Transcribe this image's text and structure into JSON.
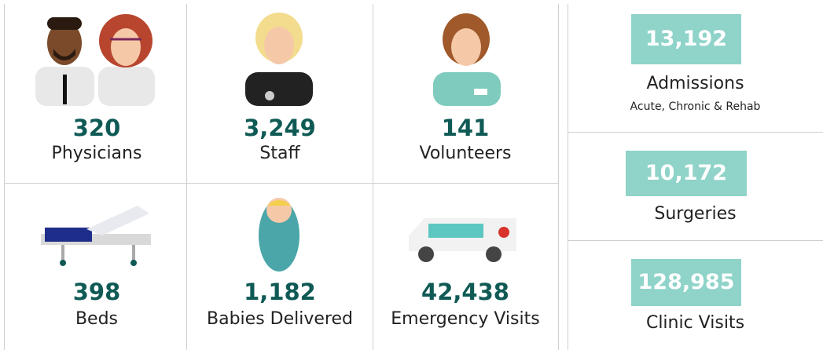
{
  "tiles": [
    {
      "value": "320",
      "label": "Physicians"
    },
    {
      "value": "3,249",
      "label": "Staff"
    },
    {
      "value": "141",
      "label": "Volunteers"
    },
    {
      "value": "398",
      "label": "Beds"
    },
    {
      "value": "1,182",
      "label": "Babies Delivered"
    },
    {
      "value": "42,438",
      "label": "Emergency Visits"
    }
  ],
  "highlights": [
    {
      "value": "13,192",
      "label": "Admissions",
      "note": "Acute, Chronic & Rehab"
    },
    {
      "value": "10,172",
      "label": "Surgeries"
    },
    {
      "value": "128,985",
      "label": "Clinic Visits"
    }
  ]
}
